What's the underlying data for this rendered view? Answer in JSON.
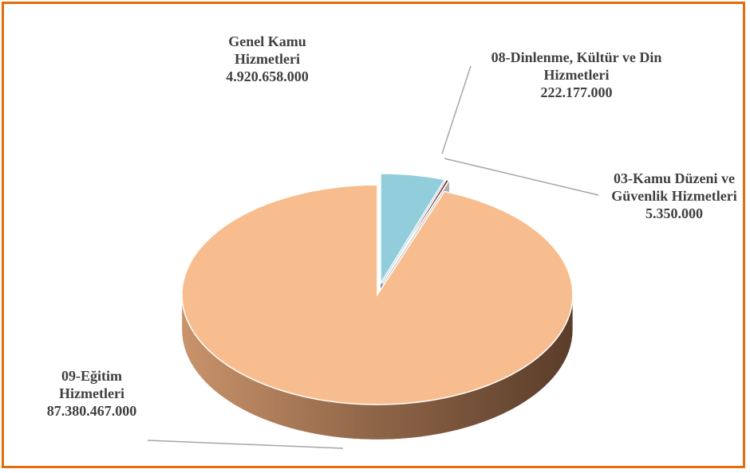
{
  "chart_data": {
    "type": "pie3d",
    "categories": [
      "Genel Kamu Hizmetleri",
      "08-Dinlenme, Kültür ve Din Hizmetleri",
      "03-Kamu Düzeni ve Güvenlik Hizmetleri",
      "09-Eğitim Hizmetleri"
    ],
    "values": [
      4920658000,
      222177000,
      5350000,
      87380467000
    ],
    "value_labels": [
      "4.920.658.000",
      "222.177.000",
      "5.350.000",
      "87.380.467.000"
    ],
    "colors": [
      "#92cddc",
      "#7b2c2c",
      "#b0b0b0",
      "#f8bd8e"
    ]
  }
}
